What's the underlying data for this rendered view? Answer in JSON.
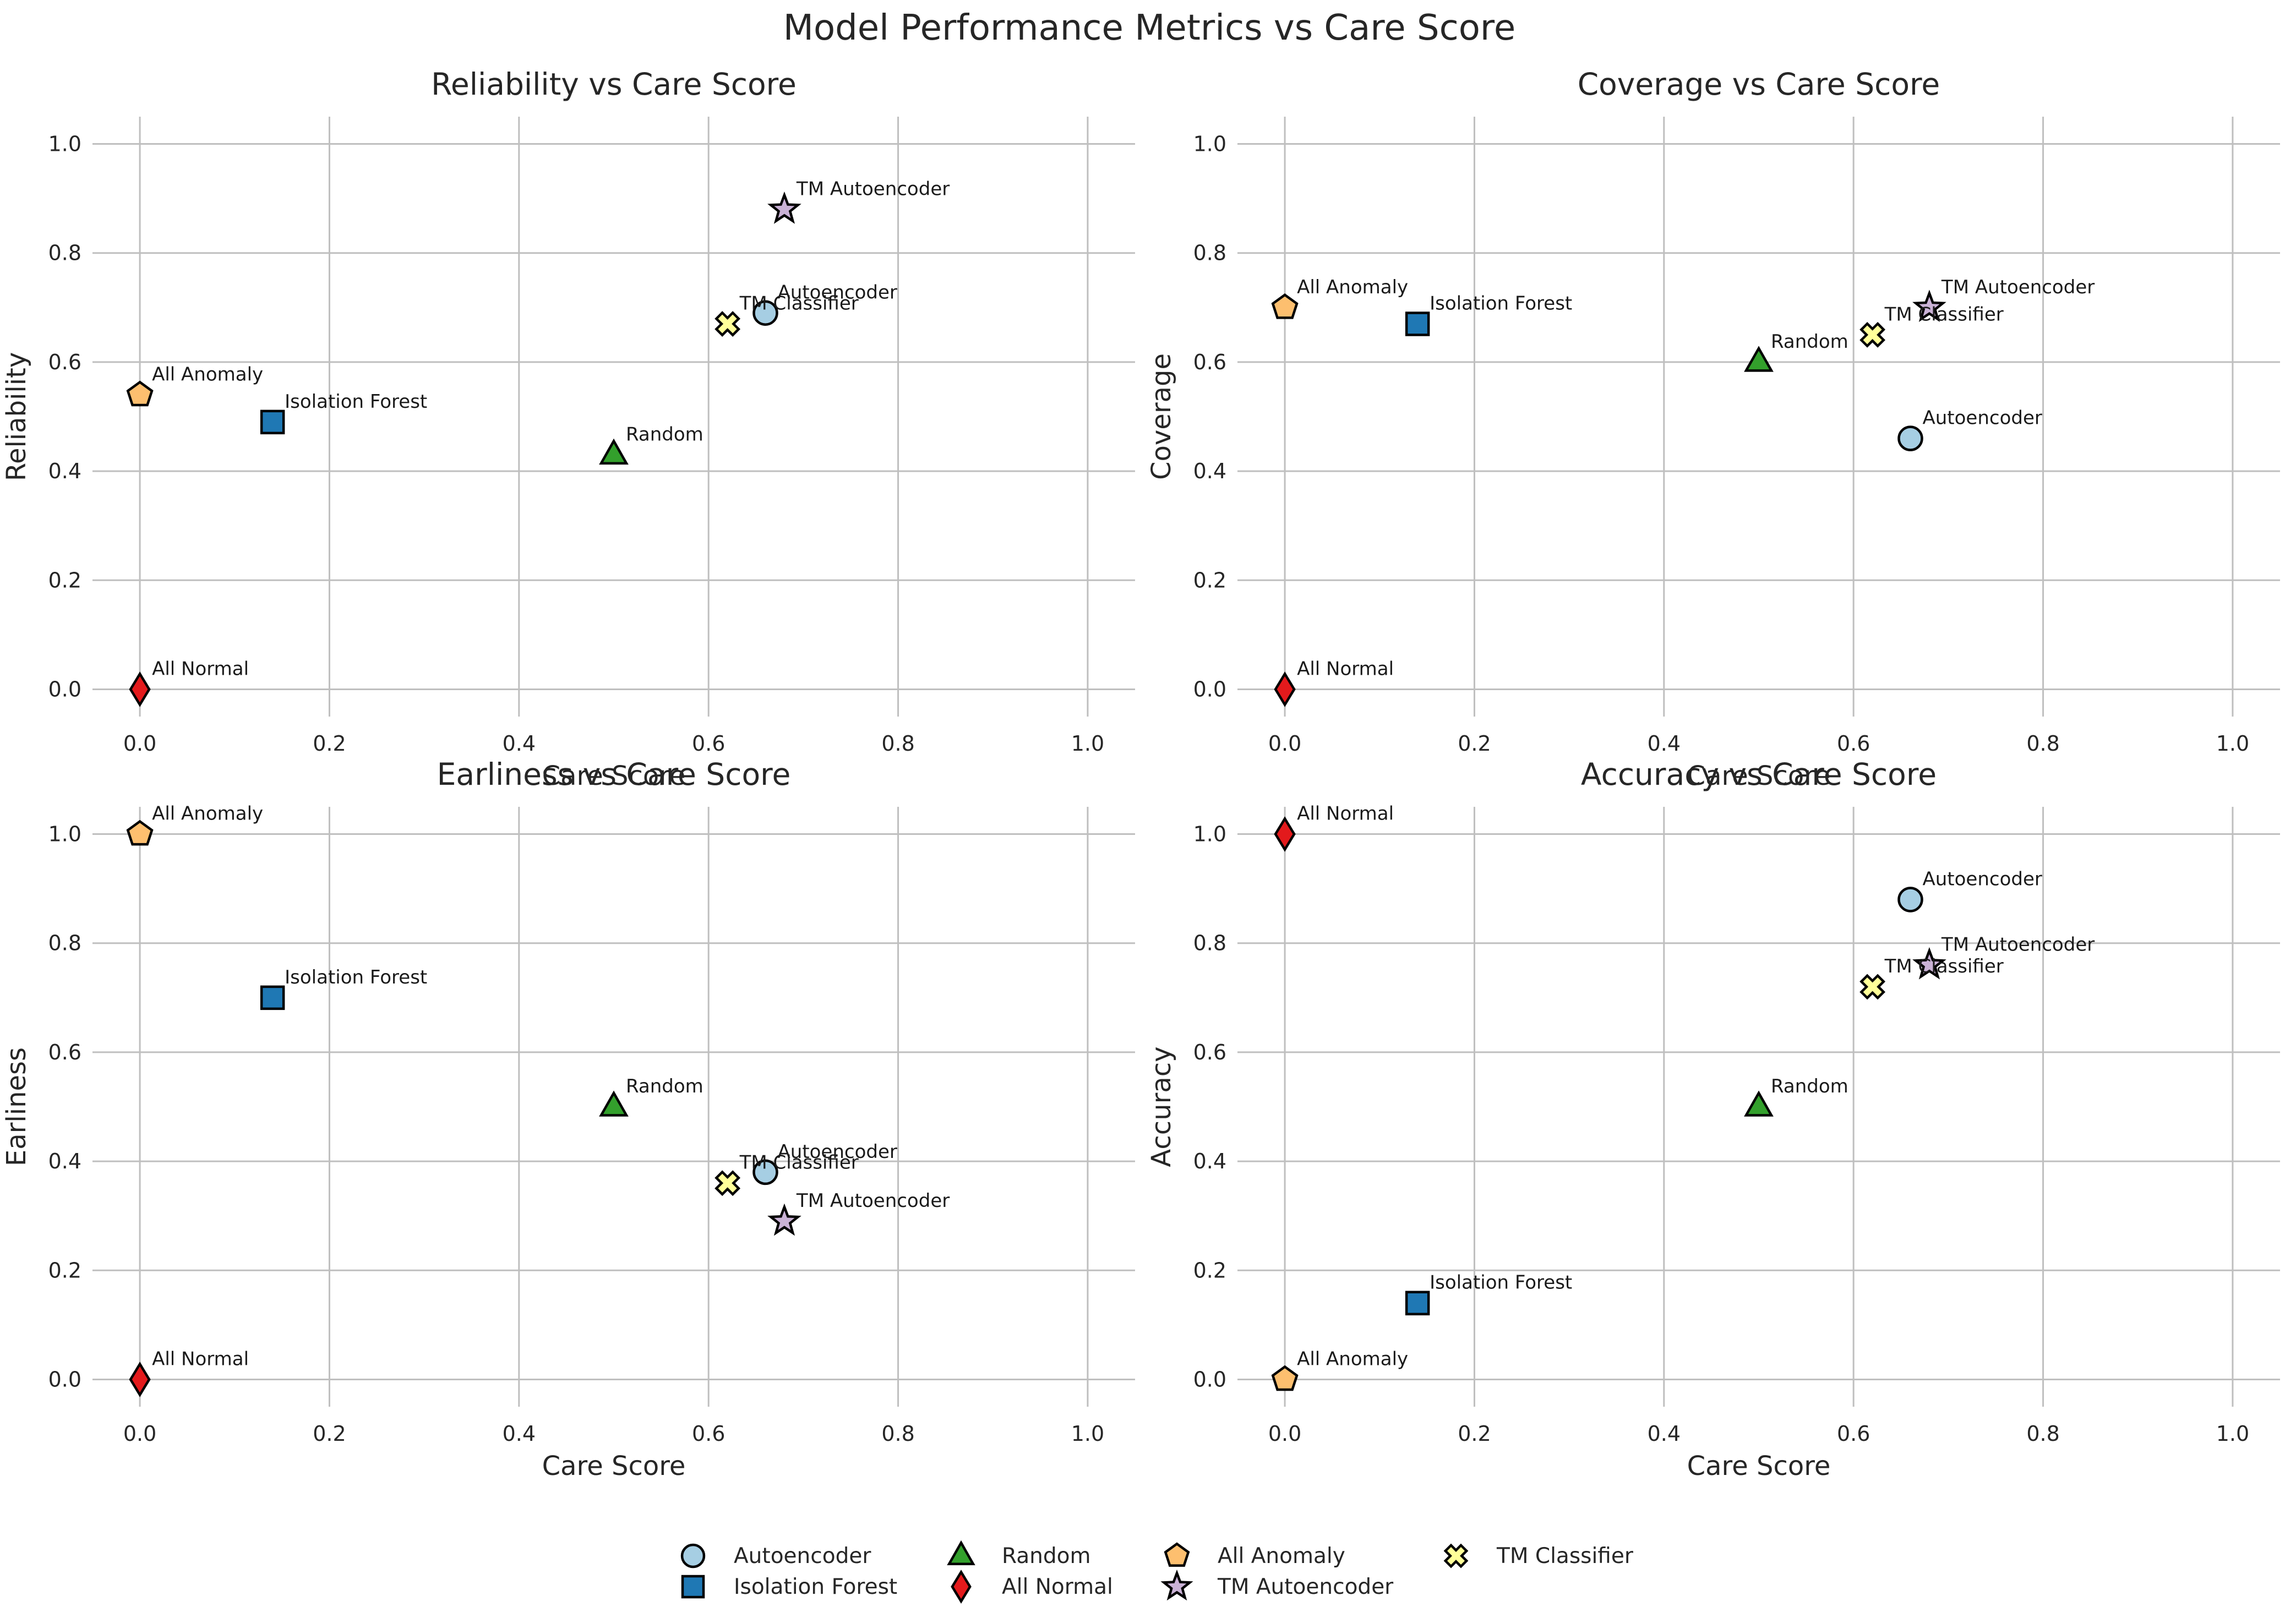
{
  "figure": {
    "title": "Model Performance Metrics vs Care Score"
  },
  "legend_order": [
    "Autoencoder",
    "Isolation Forest",
    "Random",
    "All Normal",
    "All Anomaly",
    "TM Autoencoder",
    "TM Classifier"
  ],
  "series_styles": {
    "Autoencoder": {
      "marker": "circle",
      "color": "#a6cee3"
    },
    "Isolation Forest": {
      "marker": "square",
      "color": "#1f78b4"
    },
    "Random": {
      "marker": "triangle",
      "color": "#33a02c"
    },
    "All Normal": {
      "marker": "diamond",
      "color": "#e31a1c"
    },
    "All Anomaly": {
      "marker": "pentagon",
      "color": "#fdbf6f"
    },
    "TM Autoencoder": {
      "marker": "star",
      "color": "#cab2d6"
    },
    "TM Classifier": {
      "marker": "x-filled",
      "color": "#ffff99"
    }
  },
  "chart_data": [
    {
      "type": "scatter",
      "title": "Reliability vs Care Score",
      "xlabel": "Care Score",
      "ylabel": "Reliability",
      "xlim": [
        -0.05,
        1.05
      ],
      "ylim": [
        -0.05,
        1.05
      ],
      "xticks": [
        "0.0",
        "0.2",
        "0.4",
        "0.6",
        "0.8",
        "1.0"
      ],
      "yticks": [
        "0.0",
        "0.2",
        "0.4",
        "0.6",
        "0.8",
        "1.0"
      ],
      "grid": true,
      "points": [
        {
          "name": "Autoencoder",
          "x": 0.66,
          "y": 0.69
        },
        {
          "name": "Isolation Forest",
          "x": 0.14,
          "y": 0.49
        },
        {
          "name": "Random",
          "x": 0.5,
          "y": 0.43
        },
        {
          "name": "All Normal",
          "x": 0.0,
          "y": 0.0
        },
        {
          "name": "All Anomaly",
          "x": 0.0,
          "y": 0.54
        },
        {
          "name": "TM Autoencoder",
          "x": 0.68,
          "y": 0.88
        },
        {
          "name": "TM Classifier",
          "x": 0.62,
          "y": 0.67
        }
      ]
    },
    {
      "type": "scatter",
      "title": "Coverage vs Care Score",
      "xlabel": "Care Score",
      "ylabel": "Coverage",
      "xlim": [
        -0.05,
        1.05
      ],
      "ylim": [
        -0.05,
        1.05
      ],
      "xticks": [
        "0.0",
        "0.2",
        "0.4",
        "0.6",
        "0.8",
        "1.0"
      ],
      "yticks": [
        "0.0",
        "0.2",
        "0.4",
        "0.6",
        "0.8",
        "1.0"
      ],
      "grid": true,
      "points": [
        {
          "name": "Autoencoder",
          "x": 0.66,
          "y": 0.46
        },
        {
          "name": "Isolation Forest",
          "x": 0.14,
          "y": 0.67
        },
        {
          "name": "Random",
          "x": 0.5,
          "y": 0.6
        },
        {
          "name": "All Normal",
          "x": 0.0,
          "y": 0.0
        },
        {
          "name": "All Anomaly",
          "x": 0.0,
          "y": 0.7
        },
        {
          "name": "TM Autoencoder",
          "x": 0.68,
          "y": 0.7
        },
        {
          "name": "TM Classifier",
          "x": 0.62,
          "y": 0.65
        }
      ]
    },
    {
      "type": "scatter",
      "title": "Earliness vs Care Score",
      "xlabel": "Care Score",
      "ylabel": "Earliness",
      "xlim": [
        -0.05,
        1.05
      ],
      "ylim": [
        -0.05,
        1.05
      ],
      "xticks": [
        "0.0",
        "0.2",
        "0.4",
        "0.6",
        "0.8",
        "1.0"
      ],
      "yticks": [
        "0.0",
        "0.2",
        "0.4",
        "0.6",
        "0.8",
        "1.0"
      ],
      "grid": true,
      "points": [
        {
          "name": "Autoencoder",
          "x": 0.66,
          "y": 0.38
        },
        {
          "name": "Isolation Forest",
          "x": 0.14,
          "y": 0.7
        },
        {
          "name": "Random",
          "x": 0.5,
          "y": 0.5
        },
        {
          "name": "All Normal",
          "x": 0.0,
          "y": 0.0
        },
        {
          "name": "All Anomaly",
          "x": 0.0,
          "y": 1.0
        },
        {
          "name": "TM Autoencoder",
          "x": 0.68,
          "y": 0.29
        },
        {
          "name": "TM Classifier",
          "x": 0.62,
          "y": 0.36
        }
      ]
    },
    {
      "type": "scatter",
      "title": "Accuracy vs Care Score",
      "xlabel": "Care Score",
      "ylabel": "Accuracy",
      "xlim": [
        -0.05,
        1.05
      ],
      "ylim": [
        -0.05,
        1.05
      ],
      "xticks": [
        "0.0",
        "0.2",
        "0.4",
        "0.6",
        "0.8",
        "1.0"
      ],
      "yticks": [
        "0.0",
        "0.2",
        "0.4",
        "0.6",
        "0.8",
        "1.0"
      ],
      "grid": true,
      "points": [
        {
          "name": "Autoencoder",
          "x": 0.66,
          "y": 0.88
        },
        {
          "name": "Isolation Forest",
          "x": 0.14,
          "y": 0.14
        },
        {
          "name": "Random",
          "x": 0.5,
          "y": 0.5
        },
        {
          "name": "All Normal",
          "x": 0.0,
          "y": 1.0
        },
        {
          "name": "All Anomaly",
          "x": 0.0,
          "y": 0.0
        },
        {
          "name": "TM Autoencoder",
          "x": 0.68,
          "y": 0.76
        },
        {
          "name": "TM Classifier",
          "x": 0.62,
          "y": 0.72
        }
      ]
    }
  ],
  "legend": {
    "placement": "bottom-center",
    "columns": 4
  }
}
